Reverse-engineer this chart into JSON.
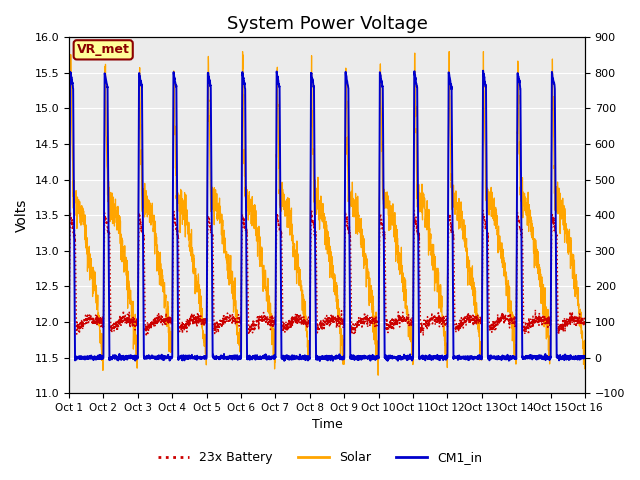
{
  "title": "System Power Voltage",
  "xlabel": "Time",
  "ylabel": "Volts",
  "xlim": [
    0,
    15
  ],
  "ylim_left": [
    11.0,
    16.0
  ],
  "ylim_right": [
    -100,
    900
  ],
  "yticks_left": [
    11.0,
    11.5,
    12.0,
    12.5,
    13.0,
    13.5,
    14.0,
    14.5,
    15.0,
    15.5,
    16.0
  ],
  "yticks_right": [
    -100,
    0,
    100,
    200,
    300,
    400,
    500,
    600,
    700,
    800,
    900
  ],
  "xtick_labels": [
    "Oct 1",
    "Oct 2",
    "Oct 3",
    "Oct 4",
    "Oct 5",
    "Oct 6",
    "Oct 7",
    "Oct 8",
    "Oct 9",
    "Oct 10",
    "Oct 11",
    "Oct 12",
    "Oct 13",
    "Oct 14",
    "Oct 15",
    "Oct 16"
  ],
  "bg_color": "#ebebeb",
  "annotation_text": "VR_met",
  "annotation_box_color": "#ffff99",
  "annotation_border_color": "#8B0000",
  "legend_entries": [
    "23x Battery",
    "Solar",
    "CM1_in"
  ],
  "line_colors": [
    "#cc0000",
    "#ffa500",
    "#0000cc"
  ],
  "title_fontsize": 13,
  "n_cycles": 15
}
